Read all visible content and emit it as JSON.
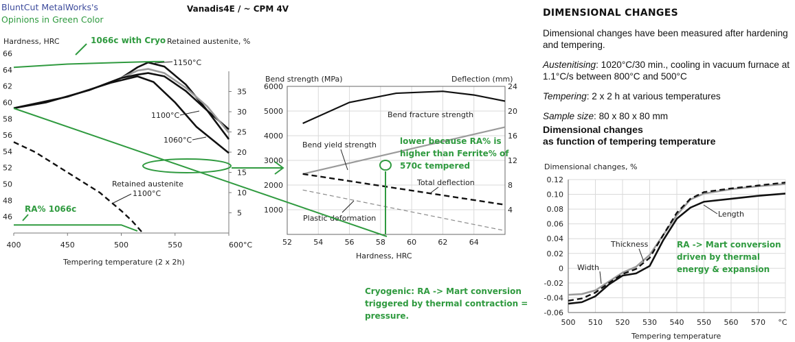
{
  "header": {
    "brand_line1": "BluntCut MetalWorks's",
    "brand_line2": "Opinions in Green Color",
    "title": "Vanadis4E / ~ CPM 4V"
  },
  "right_text": {
    "heading": "DIMENSIONAL CHANGES",
    "p1": "Dimensional changes have been measured after hardening and tempering.",
    "p2_label": "Austenitising",
    "p2_text": ": 1020°C/30 min., cooling in vacuum furnace at 1.1°C/s between 800°C and 500°C",
    "p3_label": "Tempering",
    "p3_text": ": 2 x 2 h at various temperatures",
    "p4_label": "Sample size",
    "p4_text": ": 80 x 80 x 80 mm",
    "p5_line1": "Dimensional changes",
    "p5_line2": "as function of tempering temperature"
  },
  "annotations": {
    "cryo_1066": "1066c with Cryo",
    "ra_1066": "RA% 1066c",
    "lower_l1": "lower because RA% is",
    "lower_l2": "higher than Ferrite% of",
    "lower_l3": "570c tempered",
    "cryo_l1": "Cryogenic: RA -> Mart conversion",
    "cryo_l2": "triggered by thermal contraction =",
    "cryo_l3": "pressure.",
    "ra_l1": "RA -> Mart conversion",
    "ra_l2": "driven by thermal",
    "ra_l3": "energy & expansion"
  },
  "colors": {
    "green": "#2f9a3f",
    "black": "#111111",
    "gray": "#9a9a9a",
    "brand_blue": "#3d4b9c"
  },
  "chart_data": [
    {
      "id": "hardness",
      "type": "line",
      "xlabel": "Tempering temperature (2 x 2h)",
      "ylabel": "Hardness, HRC",
      "y2label": "Retained austenite, %",
      "xlim": [
        400,
        600
      ],
      "ylim": [
        44,
        66
      ],
      "y2lim": [
        0,
        40
      ],
      "xticks": [
        "400",
        "450",
        "500",
        "550",
        "600°C"
      ],
      "yticks": [
        "46",
        "48",
        "50",
        "52",
        "54",
        "56",
        "58",
        "60",
        "62",
        "64",
        "66"
      ],
      "y2ticks": [
        "5",
        "10",
        "15",
        "20",
        "25",
        "30",
        "35"
      ],
      "series": [
        {
          "name": "1150°C",
          "style": "black",
          "x": [
            400,
            430,
            470,
            500,
            515,
            525,
            540,
            560,
            580,
            600
          ],
          "y": [
            59.3,
            60,
            61.5,
            63,
            64.3,
            64.9,
            64.4,
            62.2,
            59,
            56.7
          ]
        },
        {
          "name": "gray",
          "style": "gray",
          "x": [
            500,
            515,
            525,
            540,
            560,
            580,
            600
          ],
          "y": [
            63,
            63.9,
            64.1,
            63.6,
            61.8,
            59.5,
            56.3
          ]
        },
        {
          "name": "1100°C",
          "style": "black",
          "x": [
            500,
            515,
            525,
            540,
            560,
            580,
            600
          ],
          "y": [
            63,
            63.4,
            63.6,
            63.2,
            61.4,
            59,
            55.5
          ]
        },
        {
          "name": "1060°C",
          "style": "black",
          "x": [
            400,
            450,
            490,
            515,
            530,
            550,
            570,
            600
          ],
          "y": [
            59.3,
            60.7,
            62.4,
            63.2,
            62.5,
            60,
            57,
            53.8
          ]
        },
        {
          "name": "Retained austenite 1100°C",
          "style": "dashed",
          "axis": "y2",
          "x": [
            400,
            420,
            450,
            480,
            500,
            510,
            520
          ],
          "y2": [
            22.5,
            20,
            15,
            10,
            5.5,
            3,
            0
          ]
        },
        {
          "name": "1066c with Cryo",
          "style": "green",
          "x": [
            400,
            450,
            500,
            530,
            540
          ],
          "y": [
            64.3,
            64.7,
            64.9,
            65,
            65
          ]
        },
        {
          "name": "RA% 1066c",
          "style": "green",
          "x": [
            400,
            500,
            515
          ],
          "y2": [
            2,
            2,
            0.5
          ]
        }
      ],
      "labels": [
        "1150°C",
        "1100°C",
        "1060°C",
        "Retained austenite",
        "1100°C"
      ]
    },
    {
      "id": "bend",
      "type": "line",
      "xlabel": "Hardness, HRC",
      "ylabel": "Bend strength (MPa)",
      "y2label": "Deflection (mm)",
      "xlim": [
        52,
        66
      ],
      "ylim": [
        0,
        6000
      ],
      "y2lim": [
        0,
        24
      ],
      "xticks": [
        "52",
        "54",
        "56",
        "58",
        "60",
        "62",
        "64"
      ],
      "yticks": [
        "1000",
        "2000",
        "3000",
        "4000",
        "5000",
        "6000"
      ],
      "y2ticks": [
        "4",
        "8",
        "12",
        "16",
        "20",
        "24"
      ],
      "series": [
        {
          "name": "Bend fracture strength",
          "style": "black",
          "x": [
            53,
            56,
            59,
            62,
            64,
            66
          ],
          "y": [
            4500,
            5350,
            5720,
            5800,
            5650,
            5400
          ]
        },
        {
          "name": "Bend yield strength",
          "style": "gray",
          "x": [
            53,
            66
          ],
          "y": [
            2450,
            4350
          ]
        },
        {
          "name": "Total deflection",
          "style": "dashed",
          "axis": "y2",
          "x": [
            53,
            66
          ],
          "y2": [
            9.8,
            4.8
          ]
        },
        {
          "name": "Plastic deformation",
          "style": "graydash",
          "axis": "y2",
          "x": [
            53,
            66
          ],
          "y2": [
            7.2,
            0.6
          ]
        }
      ],
      "labels": [
        "Bend fracture strength",
        "Bend yield strength",
        "Total deflection",
        "Plastic deformation"
      ]
    },
    {
      "id": "dimensional",
      "type": "line",
      "xlabel": "Tempering temperature",
      "ylabel": "Dimensional changes, %",
      "xlim": [
        500,
        580
      ],
      "ylim": [
        -0.06,
        0.12
      ],
      "xticks": [
        "500",
        "510",
        "520",
        "530",
        "540",
        "550",
        "560",
        "570",
        "°C"
      ],
      "yticks": [
        "-0.06",
        "-0.04",
        "-0.02",
        "0",
        "0.02",
        "0.04",
        "0.06",
        "0.08",
        "0.10",
        "0.12"
      ],
      "series": [
        {
          "name": "Width",
          "style": "gray",
          "x": [
            500,
            505,
            510,
            515,
            520,
            525,
            530,
            535,
            540,
            545,
            550,
            560,
            570,
            580
          ],
          "y": [
            -0.036,
            -0.035,
            -0.03,
            -0.018,
            -0.006,
            0.002,
            0.018,
            0.045,
            0.072,
            0.093,
            0.101,
            0.107,
            0.111,
            0.114
          ]
        },
        {
          "name": "Thickness",
          "style": "dashed",
          "x": [
            500,
            505,
            510,
            515,
            520,
            525,
            530,
            535,
            540,
            545,
            550,
            560,
            570,
            580
          ],
          "y": [
            -0.044,
            -0.041,
            -0.033,
            -0.02,
            -0.008,
            -0.001,
            0.014,
            0.045,
            0.075,
            0.094,
            0.103,
            0.108,
            0.112,
            0.116
          ]
        },
        {
          "name": "Length",
          "style": "black",
          "x": [
            500,
            505,
            510,
            515,
            520,
            525,
            530,
            535,
            540,
            545,
            550,
            560,
            570,
            580
          ],
          "y": [
            -0.048,
            -0.046,
            -0.038,
            -0.022,
            -0.01,
            -0.007,
            0.003,
            0.038,
            0.067,
            0.082,
            0.09,
            0.094,
            0.098,
            0.101
          ]
        }
      ],
      "labels": [
        "Width",
        "Thickness",
        "Length"
      ]
    }
  ]
}
